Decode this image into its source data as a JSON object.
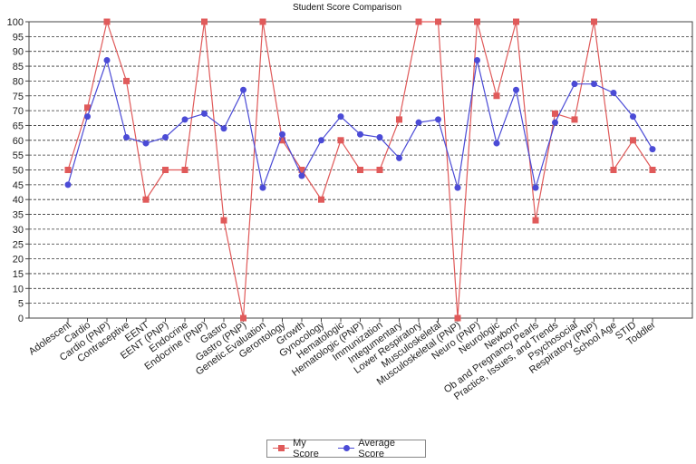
{
  "chart_data": {
    "type": "line",
    "title": "Student Score Comparison",
    "xlabel": "",
    "ylabel": "",
    "ylim": [
      0,
      100
    ],
    "yticks": [
      0,
      5,
      10,
      15,
      20,
      25,
      30,
      35,
      40,
      45,
      50,
      55,
      60,
      65,
      70,
      75,
      80,
      85,
      90,
      95,
      100
    ],
    "grid": true,
    "legend_position": "bottom",
    "categories": [
      "Adolescent",
      "Cardio",
      "Cardio (PNP)",
      "Contraceptive",
      "EENT",
      "EENT (PNP)",
      "Endocrine",
      "Endocrine (PNP)",
      "Gastro",
      "Gastro (PNP)",
      "Genetic.Evaluation",
      "Gerontology",
      "Growth",
      "Gynocology",
      "Hematologic",
      "Hematologic (PNP)",
      "Immunization",
      "Integumentary",
      "Lower Respiratory",
      "Musculoskeletal",
      "Musculoskeletal (PNP)",
      "Neuro (PNP)",
      "Neurologic",
      "Newborn",
      "Ob and Pregnancy Pearls",
      "Practice, Issues, and Trends",
      "Psychosocial",
      "Respiratory (PNP)",
      "School Age",
      "STID",
      "Toddler"
    ],
    "series": [
      {
        "name": "My Score",
        "color": "#e05a5a",
        "marker": "square",
        "values": [
          50,
          71,
          100,
          80,
          40,
          50,
          50,
          100,
          33,
          0,
          100,
          60,
          50,
          40,
          60,
          50,
          50,
          67,
          100,
          100,
          0,
          100,
          75,
          100,
          33,
          69,
          67,
          100,
          50,
          60,
          50
        ]
      },
      {
        "name": "Average Score",
        "color": "#4b4bd6",
        "marker": "circle",
        "values": [
          45,
          68,
          87,
          61,
          59,
          61,
          67,
          69,
          64,
          77,
          44,
          62,
          48,
          60,
          68,
          62,
          61,
          54,
          66,
          67,
          44,
          87,
          59,
          77,
          44,
          66,
          79,
          79,
          76,
          68,
          57
        ]
      }
    ]
  }
}
